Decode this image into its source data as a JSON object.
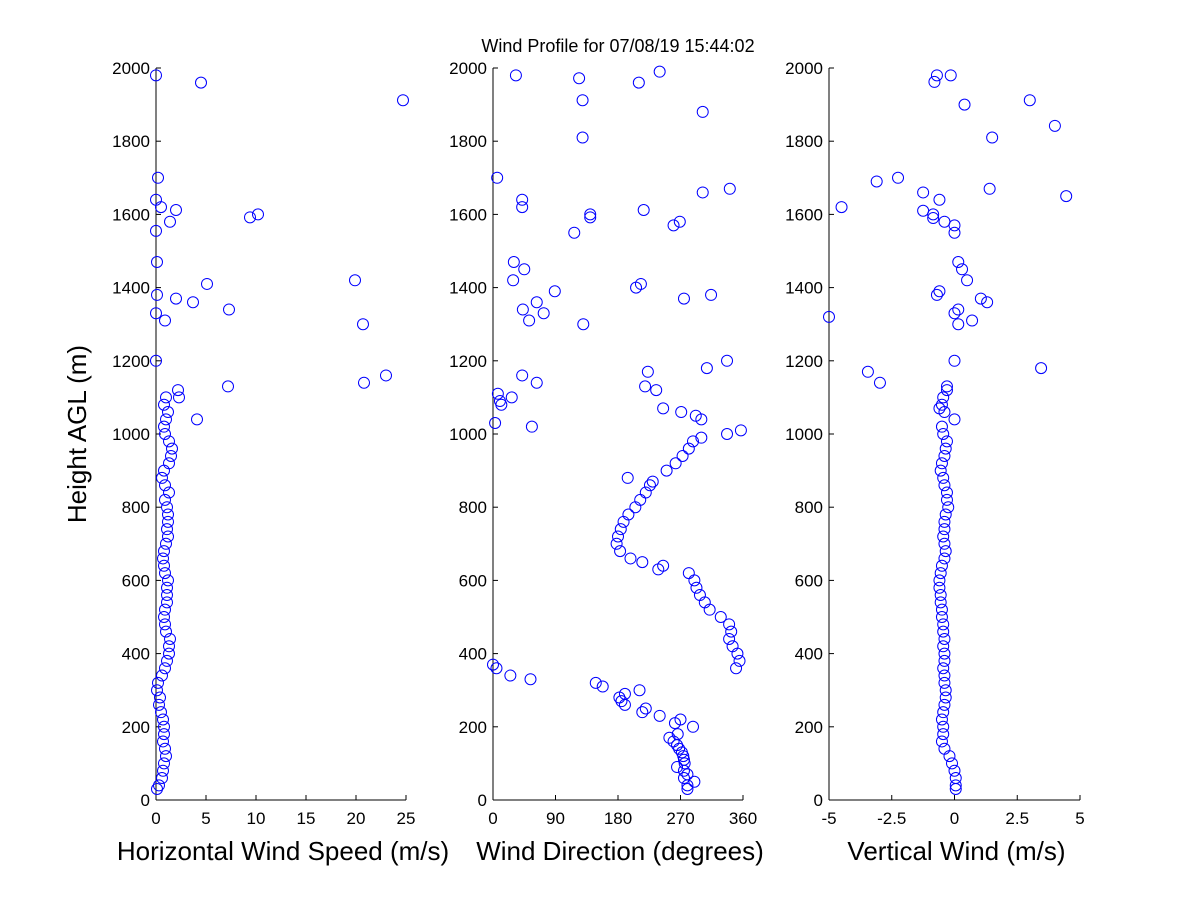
{
  "chart_data": {
    "type": "scatter",
    "title": "Wind Profile for  07/08/19 15:44:02",
    "ylabel": "Height AGL (m)",
    "ylim": [
      0,
      2000
    ],
    "yticks": [
      "0",
      "200",
      "400",
      "600",
      "800",
      "1000",
      "1200",
      "1400",
      "1600",
      "1800",
      "2000"
    ],
    "ytick_values": [
      0,
      200,
      400,
      600,
      800,
      1000,
      1200,
      1400,
      1600,
      1800,
      2000
    ],
    "marker_color": "#0000ff",
    "panels": [
      {
        "name": "horizontal-wind-speed",
        "xlabel": "Horizontal Wind Speed (m/s)",
        "xlim": [
          0,
          25
        ],
        "xtick_values": [
          0,
          5,
          10,
          15,
          20,
          25
        ],
        "xticks": [
          "0",
          "5",
          "10",
          "15",
          "20",
          "25"
        ],
        "points": [
          [
            0,
            1980
          ],
          [
            4.5,
            1960
          ],
          [
            24.7,
            1912
          ],
          [
            0.2,
            1700
          ],
          [
            0,
            1640
          ],
          [
            0.5,
            1620
          ],
          [
            2,
            1612
          ],
          [
            9.4,
            1592
          ],
          [
            10.2,
            1600
          ],
          [
            1.4,
            1580
          ],
          [
            0,
            1555
          ],
          [
            0.1,
            1470
          ],
          [
            5.1,
            1410
          ],
          [
            19.9,
            1420
          ],
          [
            0.1,
            1380
          ],
          [
            2,
            1370
          ],
          [
            3.7,
            1360
          ],
          [
            7.3,
            1340
          ],
          [
            0,
            1330
          ],
          [
            0.9,
            1310
          ],
          [
            20.7,
            1300
          ],
          [
            0,
            1200
          ],
          [
            23,
            1160
          ],
          [
            20.8,
            1140
          ],
          [
            7.2,
            1130
          ],
          [
            2.2,
            1120
          ],
          [
            2.3,
            1100
          ],
          [
            4.1,
            1040
          ],
          [
            1.0,
            1100
          ],
          [
            0.8,
            1080
          ],
          [
            1.2,
            1060
          ],
          [
            1.0,
            1040
          ],
          [
            0.8,
            1020
          ],
          [
            0.9,
            1000
          ],
          [
            1.3,
            980
          ],
          [
            1.6,
            960
          ],
          [
            1.5,
            940
          ],
          [
            1.3,
            920
          ],
          [
            0.8,
            900
          ],
          [
            0.6,
            880
          ],
          [
            0.9,
            860
          ],
          [
            1.3,
            840
          ],
          [
            0.9,
            820
          ],
          [
            1.1,
            800
          ],
          [
            1.2,
            780
          ],
          [
            1.2,
            760
          ],
          [
            1.1,
            740
          ],
          [
            1.2,
            720
          ],
          [
            1.0,
            700
          ],
          [
            0.8,
            680
          ],
          [
            0.7,
            660
          ],
          [
            0.8,
            640
          ],
          [
            0.9,
            620
          ],
          [
            1.2,
            600
          ],
          [
            1.1,
            580
          ],
          [
            1.1,
            560
          ],
          [
            1.1,
            540
          ],
          [
            0.9,
            520
          ],
          [
            0.8,
            500
          ],
          [
            0.9,
            480
          ],
          [
            1.0,
            460
          ],
          [
            1.4,
            440
          ],
          [
            1.3,
            420
          ],
          [
            1.3,
            400
          ],
          [
            1.1,
            380
          ],
          [
            0.9,
            360
          ],
          [
            0.6,
            340
          ],
          [
            0.2,
            320
          ],
          [
            0.1,
            300
          ],
          [
            0.4,
            280
          ],
          [
            0.3,
            260
          ],
          [
            0.5,
            240
          ],
          [
            0.7,
            220
          ],
          [
            0.8,
            200
          ],
          [
            0.8,
            180
          ],
          [
            0.7,
            160
          ],
          [
            0.9,
            140
          ],
          [
            1.0,
            120
          ],
          [
            0.8,
            100
          ],
          [
            0.7,
            80
          ],
          [
            0.6,
            60
          ],
          [
            0.3,
            40
          ],
          [
            0.1,
            30
          ]
        ]
      },
      {
        "name": "wind-direction",
        "xlabel": "Wind Direction (degrees)",
        "xlim": [
          0,
          360
        ],
        "xtick_values": [
          0,
          90,
          180,
          270,
          360
        ],
        "xticks": [
          "0",
          "90",
          "180",
          "270",
          "360"
        ],
        "points": [
          [
            33,
            1980
          ],
          [
            124,
            1972
          ],
          [
            240,
            1990
          ],
          [
            210,
            1960
          ],
          [
            129,
            1912
          ],
          [
            302,
            1880
          ],
          [
            129,
            1810
          ],
          [
            6,
            1700
          ],
          [
            302,
            1660
          ],
          [
            341,
            1670
          ],
          [
            42,
            1640
          ],
          [
            42,
            1620
          ],
          [
            140,
            1600
          ],
          [
            217,
            1612
          ],
          [
            140,
            1592
          ],
          [
            269,
            1580
          ],
          [
            260,
            1570
          ],
          [
            117,
            1550
          ],
          [
            30,
            1470
          ],
          [
            45,
            1450
          ],
          [
            29,
            1420
          ],
          [
            213,
            1410
          ],
          [
            206,
            1400
          ],
          [
            89,
            1390
          ],
          [
            314,
            1380
          ],
          [
            275,
            1370
          ],
          [
            63,
            1360
          ],
          [
            43,
            1340
          ],
          [
            73,
            1330
          ],
          [
            52,
            1310
          ],
          [
            130,
            1300
          ],
          [
            337,
            1200
          ],
          [
            308,
            1180
          ],
          [
            223,
            1170
          ],
          [
            42,
            1160
          ],
          [
            63,
            1140
          ],
          [
            219,
            1130
          ],
          [
            235,
            1120
          ],
          [
            7,
            1110
          ],
          [
            27,
            1100
          ],
          [
            10,
            1090
          ],
          [
            12,
            1080
          ],
          [
            245,
            1070
          ],
          [
            271,
            1060
          ],
          [
            292,
            1050
          ],
          [
            300,
            1040
          ],
          [
            56,
            1020
          ],
          [
            3,
            1030
          ],
          [
            357,
            1010
          ],
          [
            337,
            1000
          ],
          [
            300,
            990
          ],
          [
            288,
            980
          ],
          [
            282,
            960
          ],
          [
            273,
            940
          ],
          [
            263,
            920
          ],
          [
            250,
            900
          ],
          [
            194,
            880
          ],
          [
            230,
            870
          ],
          [
            226,
            860
          ],
          [
            220,
            840
          ],
          [
            212,
            820
          ],
          [
            205,
            800
          ],
          [
            195,
            780
          ],
          [
            188,
            760
          ],
          [
            184,
            740
          ],
          [
            180,
            720
          ],
          [
            178,
            700
          ],
          [
            183,
            680
          ],
          [
            198,
            660
          ],
          [
            215,
            650
          ],
          [
            245,
            640
          ],
          [
            238,
            630
          ],
          [
            282,
            620
          ],
          [
            290,
            600
          ],
          [
            293,
            580
          ],
          [
            298,
            560
          ],
          [
            305,
            540
          ],
          [
            312,
            520
          ],
          [
            328,
            500
          ],
          [
            340,
            480
          ],
          [
            343,
            460
          ],
          [
            340,
            440
          ],
          [
            345,
            420
          ],
          [
            352,
            400
          ],
          [
            355,
            380
          ],
          [
            350,
            360
          ],
          [
            5,
            360
          ],
          [
            0,
            370
          ],
          [
            25,
            340
          ],
          [
            54,
            330
          ],
          [
            148,
            320
          ],
          [
            158,
            310
          ],
          [
            211,
            300
          ],
          [
            190,
            290
          ],
          [
            182,
            280
          ],
          [
            185,
            270
          ],
          [
            190,
            260
          ],
          [
            220,
            250
          ],
          [
            215,
            240
          ],
          [
            240,
            230
          ],
          [
            270,
            220
          ],
          [
            262,
            210
          ],
          [
            288,
            200
          ],
          [
            266,
            180
          ],
          [
            254,
            170
          ],
          [
            260,
            160
          ],
          [
            265,
            150
          ],
          [
            268,
            140
          ],
          [
            272,
            130
          ],
          [
            274,
            120
          ],
          [
            275,
            110
          ],
          [
            276,
            100
          ],
          [
            265,
            90
          ],
          [
            275,
            80
          ],
          [
            280,
            70
          ],
          [
            275,
            60
          ],
          [
            290,
            50
          ],
          [
            280,
            40
          ],
          [
            280,
            30
          ]
        ]
      },
      {
        "name": "vertical-wind",
        "xlabel": "Vertical Wind (m/s)",
        "xlim": [
          -5,
          5
        ],
        "xtick_values": [
          -5,
          -2.5,
          0,
          2.5,
          5
        ],
        "xticks": [
          "-5",
          "-2.5",
          "0",
          "2.5",
          "5"
        ],
        "points": [
          [
            -0.7,
            1980
          ],
          [
            -0.15,
            1980
          ],
          [
            -0.8,
            1962
          ],
          [
            0.4,
            1900
          ],
          [
            3.0,
            1912
          ],
          [
            4.0,
            1842
          ],
          [
            1.5,
            1810
          ],
          [
            -1.25,
            1660
          ],
          [
            1.4,
            1670
          ],
          [
            4.45,
            1650
          ],
          [
            -0.6,
            1640
          ],
          [
            -4.5,
            1620
          ],
          [
            -3.1,
            1690
          ],
          [
            -2.25,
            1700
          ],
          [
            -1.25,
            1610
          ],
          [
            -0.85,
            1600
          ],
          [
            -0.85,
            1590
          ],
          [
            -0.4,
            1580
          ],
          [
            0,
            1570
          ],
          [
            0,
            1550
          ],
          [
            0.15,
            1470
          ],
          [
            0.3,
            1450
          ],
          [
            0.5,
            1420
          ],
          [
            -0.6,
            1390
          ],
          [
            -0.7,
            1380
          ],
          [
            1.05,
            1370
          ],
          [
            1.3,
            1360
          ],
          [
            0.15,
            1340
          ],
          [
            0,
            1330
          ],
          [
            -5.0,
            1320
          ],
          [
            0.7,
            1310
          ],
          [
            0.15,
            1300
          ],
          [
            0,
            1200
          ],
          [
            3.45,
            1180
          ],
          [
            -3.45,
            1170
          ],
          [
            -2.97,
            1140
          ],
          [
            -0.3,
            1130
          ],
          [
            -0.3,
            1120
          ],
          [
            -0.45,
            1100
          ],
          [
            -0.5,
            1080
          ],
          [
            -0.6,
            1070
          ],
          [
            0,
            1040
          ],
          [
            -0.4,
            1060
          ],
          [
            -0.5,
            1020
          ],
          [
            -0.45,
            1000
          ],
          [
            -0.3,
            980
          ],
          [
            -0.35,
            960
          ],
          [
            -0.4,
            940
          ],
          [
            -0.5,
            920
          ],
          [
            -0.55,
            900
          ],
          [
            -0.45,
            880
          ],
          [
            -0.4,
            860
          ],
          [
            -0.3,
            840
          ],
          [
            -0.3,
            820
          ],
          [
            -0.25,
            800
          ],
          [
            -0.35,
            780
          ],
          [
            -0.4,
            760
          ],
          [
            -0.4,
            740
          ],
          [
            -0.45,
            720
          ],
          [
            -0.4,
            700
          ],
          [
            -0.35,
            680
          ],
          [
            -0.4,
            660
          ],
          [
            -0.5,
            640
          ],
          [
            -0.55,
            620
          ],
          [
            -0.6,
            600
          ],
          [
            -0.6,
            580
          ],
          [
            -0.55,
            560
          ],
          [
            -0.55,
            540
          ],
          [
            -0.5,
            520
          ],
          [
            -0.5,
            500
          ],
          [
            -0.45,
            480
          ],
          [
            -0.45,
            460
          ],
          [
            -0.4,
            440
          ],
          [
            -0.45,
            420
          ],
          [
            -0.4,
            400
          ],
          [
            -0.4,
            380
          ],
          [
            -0.45,
            360
          ],
          [
            -0.4,
            340
          ],
          [
            -0.4,
            320
          ],
          [
            -0.35,
            300
          ],
          [
            -0.35,
            280
          ],
          [
            -0.4,
            260
          ],
          [
            -0.45,
            240
          ],
          [
            -0.5,
            220
          ],
          [
            -0.45,
            200
          ],
          [
            -0.45,
            180
          ],
          [
            -0.5,
            160
          ],
          [
            -0.4,
            140
          ],
          [
            -0.2,
            120
          ],
          [
            -0.1,
            100
          ],
          [
            0,
            80
          ],
          [
            0.05,
            60
          ],
          [
            0.05,
            40
          ],
          [
            0.05,
            30
          ]
        ]
      }
    ]
  }
}
